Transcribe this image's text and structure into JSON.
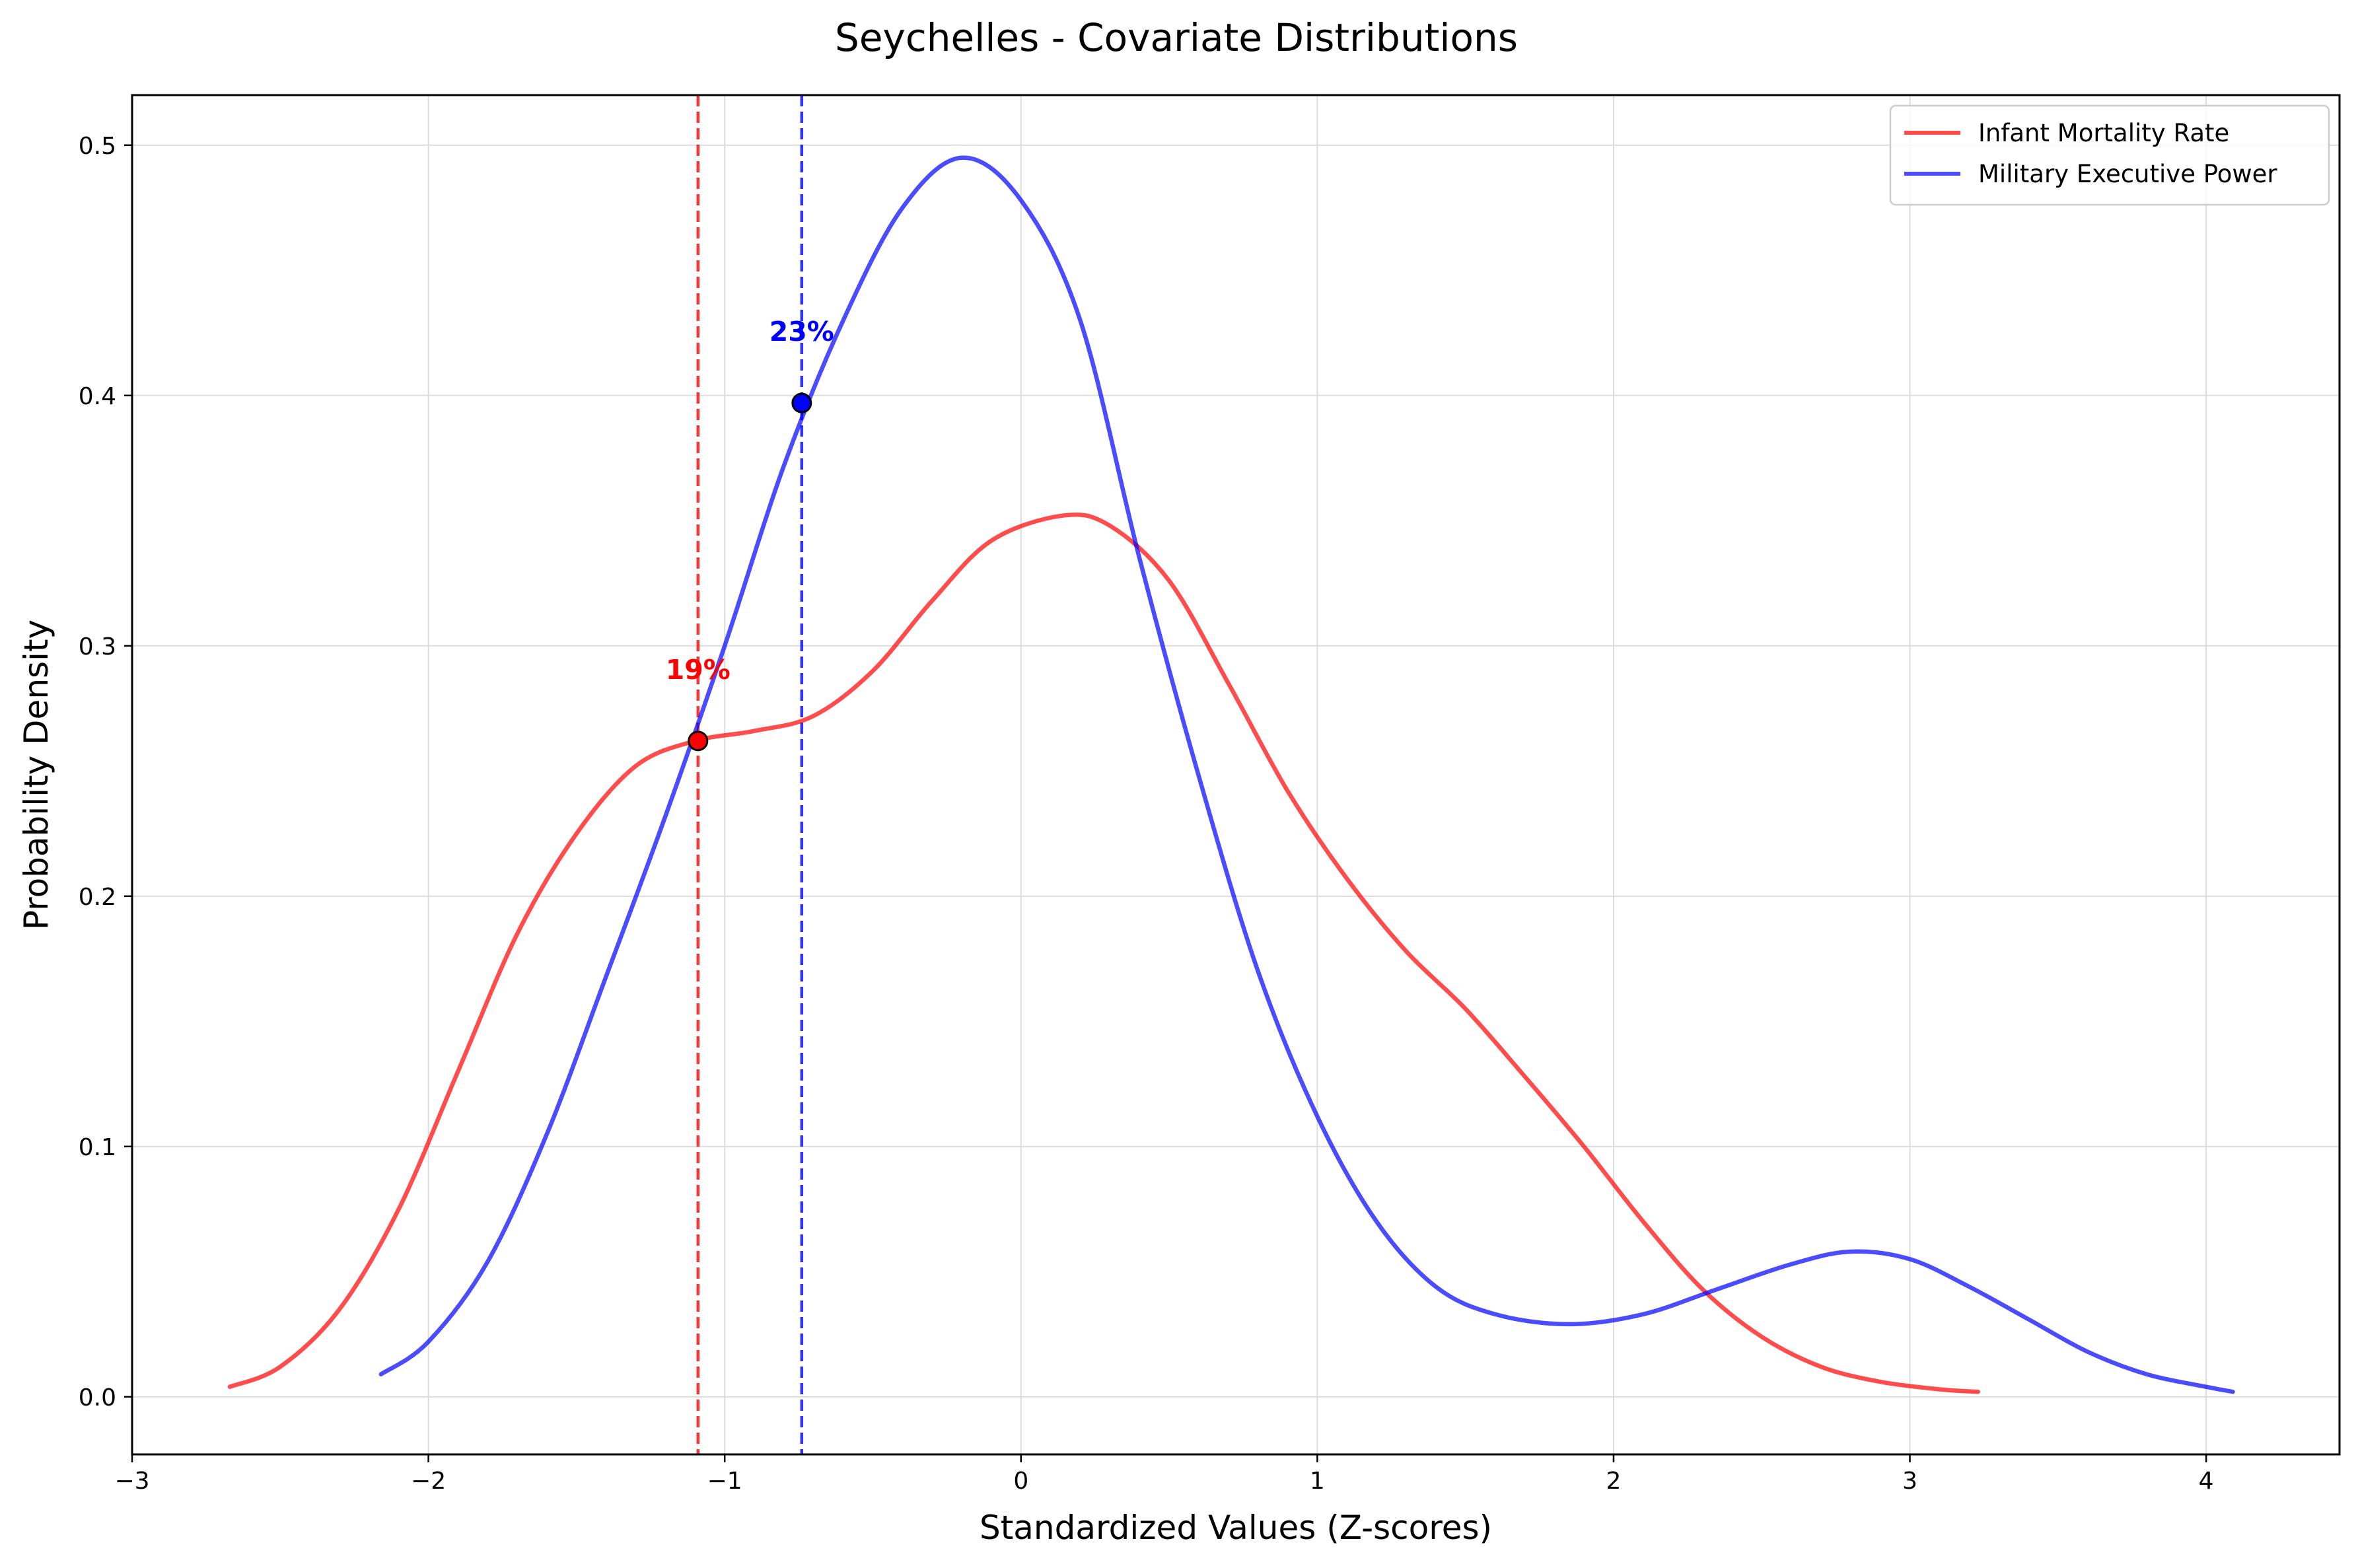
{
  "chart_data": {
    "type": "line",
    "title": "Seychelles - Covariate Distributions",
    "xlabel": "Standardized Values (Z-scores)",
    "ylabel": "Probability Density",
    "xlim": [
      -3,
      4.45
    ],
    "ylim": [
      -0.023,
      0.52
    ],
    "xticks": [
      -3,
      -2,
      -1,
      0,
      1,
      2,
      3,
      4
    ],
    "xtick_labels": [
      "−3",
      "−2",
      "−1",
      "0",
      "1",
      "2",
      "3",
      "4"
    ],
    "yticks": [
      0.0,
      0.1,
      0.2,
      0.3,
      0.4,
      0.5
    ],
    "ytick_labels": [
      "0.0",
      "0.1",
      "0.2",
      "0.3",
      "0.4",
      "0.5"
    ],
    "grid": true,
    "legend_position": "top-right",
    "series": [
      {
        "name": "Infant Mortality Rate",
        "color": "#ff0000",
        "points": [
          [
            -2.67,
            0.004
          ],
          [
            -2.5,
            0.012
          ],
          [
            -2.3,
            0.035
          ],
          [
            -2.1,
            0.075
          ],
          [
            -1.9,
            0.13
          ],
          [
            -1.7,
            0.185
          ],
          [
            -1.5,
            0.225
          ],
          [
            -1.3,
            0.252
          ],
          [
            -1.1,
            0.262
          ],
          [
            -0.9,
            0.266
          ],
          [
            -0.7,
            0.272
          ],
          [
            -0.5,
            0.29
          ],
          [
            -0.3,
            0.318
          ],
          [
            -0.1,
            0.342
          ],
          [
            0.14,
            0.352
          ],
          [
            0.3,
            0.348
          ],
          [
            0.5,
            0.326
          ],
          [
            0.7,
            0.285
          ],
          [
            0.9,
            0.242
          ],
          [
            1.1,
            0.207
          ],
          [
            1.3,
            0.178
          ],
          [
            1.5,
            0.155
          ],
          [
            1.7,
            0.128
          ],
          [
            1.9,
            0.1
          ],
          [
            2.1,
            0.07
          ],
          [
            2.3,
            0.043
          ],
          [
            2.5,
            0.024
          ],
          [
            2.7,
            0.012
          ],
          [
            2.9,
            0.006
          ],
          [
            3.1,
            0.003
          ],
          [
            3.23,
            0.002
          ]
        ],
        "marker": {
          "x": -1.09,
          "y": 0.262,
          "label": "19%"
        }
      },
      {
        "name": "Military Executive Power",
        "color": "#0000ff",
        "points": [
          [
            -2.16,
            0.009
          ],
          [
            -2.0,
            0.022
          ],
          [
            -1.8,
            0.054
          ],
          [
            -1.6,
            0.105
          ],
          [
            -1.4,
            0.168
          ],
          [
            -1.2,
            0.232
          ],
          [
            -1.0,
            0.3
          ],
          [
            -0.8,
            0.372
          ],
          [
            -0.6,
            0.43
          ],
          [
            -0.4,
            0.475
          ],
          [
            -0.2,
            0.495
          ],
          [
            0.0,
            0.478
          ],
          [
            0.2,
            0.43
          ],
          [
            0.4,
            0.335
          ],
          [
            0.6,
            0.248
          ],
          [
            0.8,
            0.17
          ],
          [
            1.0,
            0.112
          ],
          [
            1.2,
            0.07
          ],
          [
            1.4,
            0.044
          ],
          [
            1.6,
            0.033
          ],
          [
            1.85,
            0.029
          ],
          [
            2.1,
            0.033
          ],
          [
            2.35,
            0.043
          ],
          [
            2.6,
            0.053
          ],
          [
            2.8,
            0.058
          ],
          [
            3.0,
            0.055
          ],
          [
            3.2,
            0.044
          ],
          [
            3.4,
            0.031
          ],
          [
            3.6,
            0.018
          ],
          [
            3.8,
            0.009
          ],
          [
            4.0,
            0.004
          ],
          [
            4.09,
            0.002
          ]
        ],
        "marker": {
          "x": -0.74,
          "y": 0.397,
          "label": "23%"
        }
      }
    ]
  }
}
